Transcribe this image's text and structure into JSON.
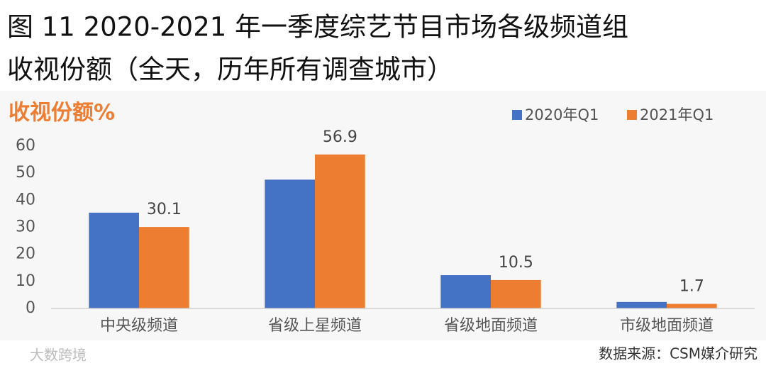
{
  "chart_data": {
    "type": "bar",
    "title": "图 11 2020-2021 年一季度综艺节目市场各级频道组",
    "subtitle": "收视份额（全天，历年所有调查城市）",
    "y_label": "收视份额%",
    "categories": [
      "中央级频道",
      "省级上星频道",
      "省级地面频道",
      "市级地面频道"
    ],
    "series": [
      {
        "name": "2020年Q1",
        "color": "#4472c4",
        "values": [
          35.4,
          47.6,
          12.3,
          2.4
        ],
        "show_values": false
      },
      {
        "name": "2021年Q1",
        "color": "#ed7d31",
        "values": [
          30.1,
          56.9,
          10.5,
          1.7
        ],
        "show_values": true
      }
    ],
    "ylim": [
      0,
      60
    ],
    "yticks": [
      0,
      10,
      20,
      30,
      40,
      50,
      60
    ],
    "grid": false,
    "legend": "top-right",
    "source": "数据来源：CSM媒介研究",
    "watermark": "大数跨境"
  }
}
